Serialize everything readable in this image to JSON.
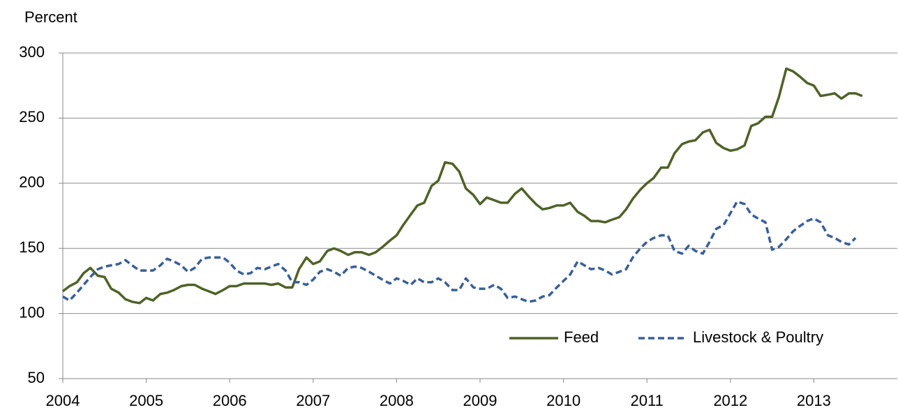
{
  "chart_data": {
    "type": "line",
    "y_label": "Percent",
    "x": [
      2004,
      2004.08,
      2004.17,
      2004.25,
      2004.33,
      2004.42,
      2004.5,
      2004.58,
      2004.67,
      2004.75,
      2004.83,
      2004.92,
      2005,
      2005.08,
      2005.17,
      2005.25,
      2005.33,
      2005.42,
      2005.5,
      2005.58,
      2005.67,
      2005.75,
      2005.83,
      2005.92,
      2006,
      2006.08,
      2006.17,
      2006.25,
      2006.33,
      2006.42,
      2006.5,
      2006.58,
      2006.67,
      2006.75,
      2006.83,
      2006.92,
      2007,
      2007.08,
      2007.17,
      2007.25,
      2007.33,
      2007.42,
      2007.5,
      2007.58,
      2007.67,
      2007.75,
      2007.83,
      2007.92,
      2008,
      2008.08,
      2008.17,
      2008.25,
      2008.33,
      2008.42,
      2008.5,
      2008.58,
      2008.67,
      2008.75,
      2008.83,
      2008.92,
      2009,
      2009.08,
      2009.17,
      2009.25,
      2009.33,
      2009.42,
      2009.5,
      2009.58,
      2009.67,
      2009.75,
      2009.83,
      2009.92,
      2010,
      2010.08,
      2010.17,
      2010.25,
      2010.33,
      2010.42,
      2010.5,
      2010.58,
      2010.67,
      2010.75,
      2010.83,
      2010.92,
      2011,
      2011.08,
      2011.17,
      2011.25,
      2011.33,
      2011.42,
      2011.5,
      2011.58,
      2011.67,
      2011.75,
      2011.83,
      2011.92,
      2012,
      2012.08,
      2012.17,
      2012.25,
      2012.33,
      2012.42,
      2012.5,
      2012.58,
      2012.67,
      2012.75,
      2012.83,
      2012.92,
      2013,
      2013.08,
      2013.17,
      2013.25,
      2013.33,
      2013.42,
      2013.5,
      2013.58
    ],
    "series": [
      {
        "name": "Feed",
        "color": "#4f6228",
        "dashed": false,
        "values": [
          117,
          121,
          124,
          131,
          135,
          129,
          128,
          119,
          116,
          111,
          109,
          108,
          112,
          110,
          115,
          116,
          118,
          121,
          122,
          122,
          119,
          117,
          115,
          118,
          121,
          121,
          123,
          123,
          123,
          123,
          122,
          123,
          120,
          120,
          134,
          143,
          138,
          140,
          148,
          150,
          148,
          145,
          147,
          147,
          145,
          147,
          151,
          156,
          160,
          168,
          176,
          183,
          185,
          198,
          202,
          216,
          215,
          209,
          196,
          191,
          184,
          189,
          187,
          185,
          185,
          192,
          196,
          190,
          184,
          180,
          181,
          183,
          183,
          185,
          178,
          175,
          171,
          171,
          170,
          172,
          174,
          180,
          188,
          195,
          200,
          204,
          212,
          212,
          223,
          230,
          232,
          233,
          239,
          241,
          231,
          227,
          225,
          226,
          229,
          244,
          246,
          251,
          251,
          266,
          288,
          286,
          282,
          277,
          275,
          267,
          268,
          269,
          265,
          269,
          269,
          267
        ]
      },
      {
        "name": "Livestock & Poultry",
        "color": "#3a5f98",
        "dashed": true,
        "values": [
          113,
          110,
          116,
          122,
          128,
          134,
          136,
          137,
          138,
          141,
          137,
          133,
          133,
          133,
          137,
          142,
          140,
          137,
          132,
          135,
          142,
          143,
          143,
          143,
          139,
          133,
          130,
          131,
          135,
          134,
          136,
          138,
          133,
          124,
          124,
          122,
          126,
          132,
          134,
          132,
          129,
          135,
          136,
          135,
          132,
          129,
          126,
          123,
          127,
          125,
          122,
          127,
          124,
          124,
          127,
          124,
          118,
          118,
          127,
          120,
          119,
          119,
          122,
          119,
          112,
          113,
          111,
          109,
          110,
          113,
          114,
          120,
          125,
          130,
          140,
          137,
          134,
          135,
          133,
          130,
          132,
          134,
          143,
          150,
          155,
          158,
          160,
          160,
          148,
          146,
          152,
          148,
          146,
          155,
          165,
          168,
          177,
          186,
          184,
          176,
          173,
          170,
          149,
          151,
          157,
          163,
          167,
          171,
          173,
          170,
          160,
          158,
          155,
          153,
          158,
          null
        ]
      }
    ],
    "xlim": [
      2004,
      2014
    ],
    "xticks": [
      2004,
      2005,
      2006,
      2007,
      2008,
      2009,
      2010,
      2011,
      2012,
      2013
    ],
    "ylim": [
      50,
      300
    ],
    "yticks": [
      50,
      100,
      150,
      200,
      250,
      300
    ],
    "grid": true,
    "legend": "lower right"
  }
}
